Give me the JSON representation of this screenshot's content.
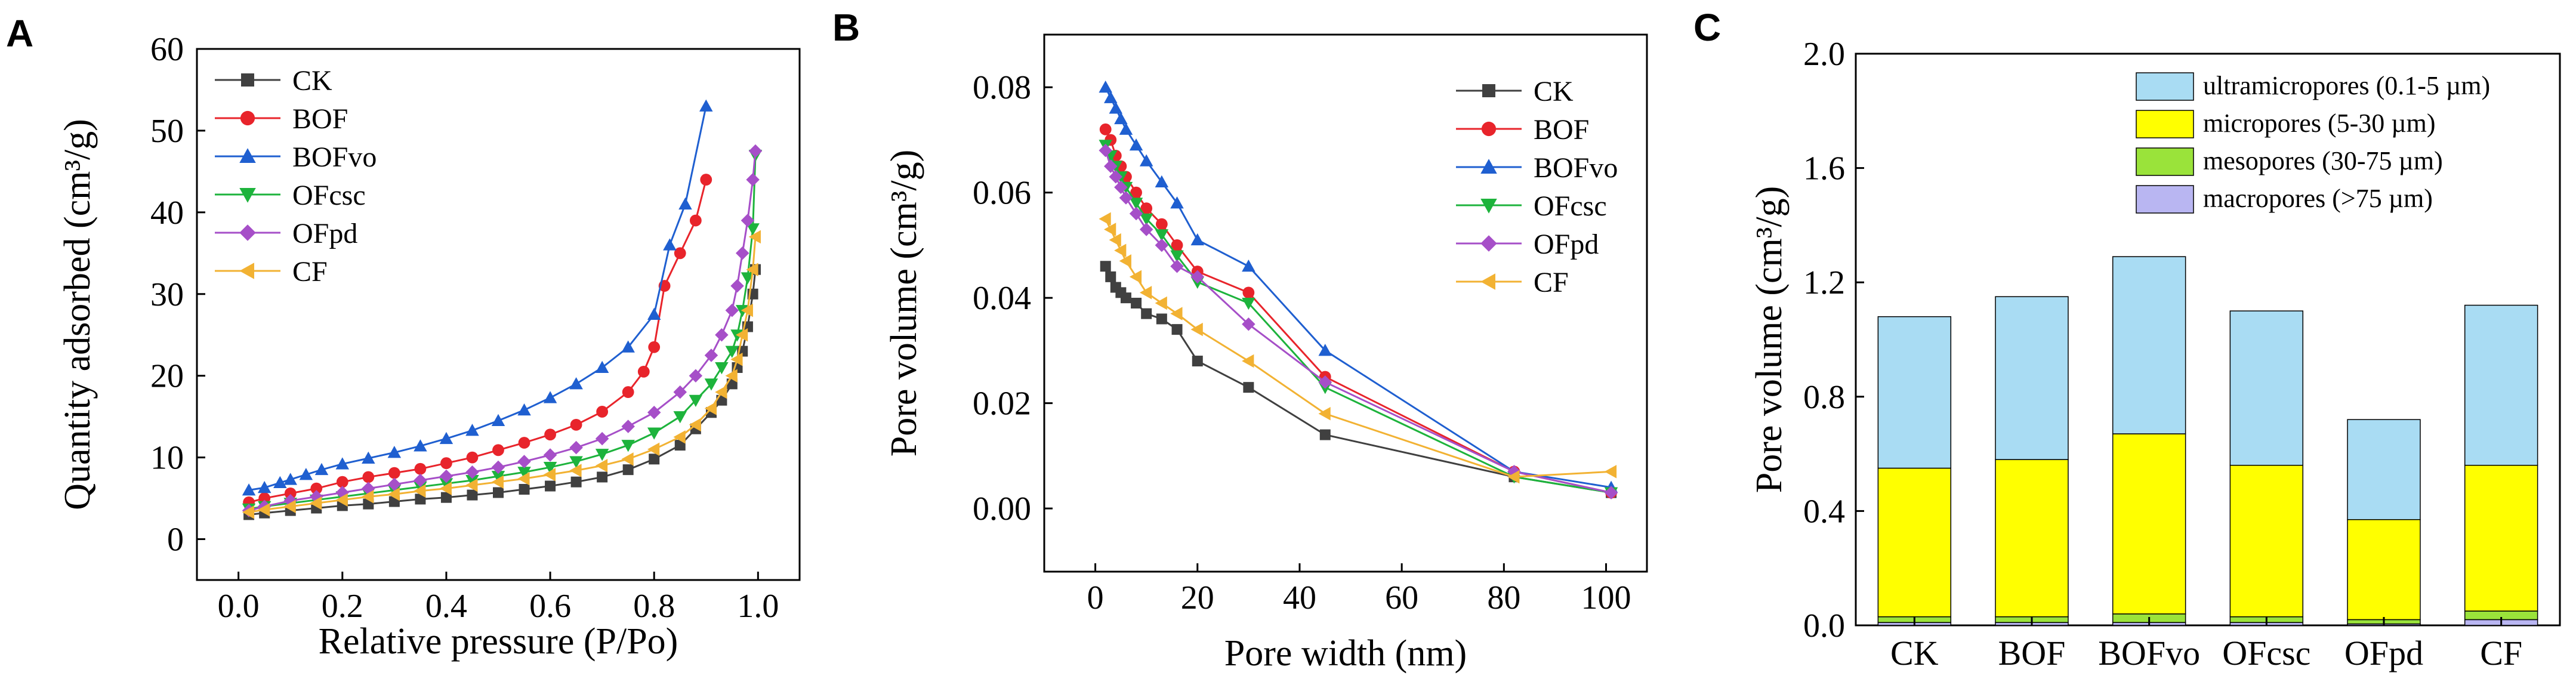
{
  "figure": {
    "panel_letters": [
      "A",
      "B",
      "C"
    ]
  },
  "chart_data": [
    {
      "type": "line",
      "panel": "A",
      "title": "",
      "xlabel": "Relative pressure (P/Po)",
      "ylabel": "Quantity adsorbed (cm³/g)",
      "xlim": [
        -0.08,
        1.08
      ],
      "ylim": [
        -5,
        60
      ],
      "xticks": [
        0.0,
        0.2,
        0.4,
        0.6,
        0.8,
        1.0
      ],
      "xtick_labels": [
        "0.0",
        "0.2",
        "0.4",
        "0.6",
        "0.8",
        "1.0"
      ],
      "yticks": [
        0,
        10,
        20,
        30,
        40,
        50,
        60
      ],
      "ytick_labels": [
        "0",
        "10",
        "20",
        "30",
        "40",
        "50",
        "60"
      ],
      "legend_position": "top-left",
      "series": [
        {
          "name": "CK",
          "color": "#404040",
          "marker": "square",
          "x": [
            0.02,
            0.05,
            0.1,
            0.15,
            0.2,
            0.25,
            0.3,
            0.35,
            0.4,
            0.45,
            0.5,
            0.55,
            0.6,
            0.65,
            0.7,
            0.75,
            0.8,
            0.85,
            0.88,
            0.91,
            0.93,
            0.95,
            0.96,
            0.97,
            0.98,
            0.99,
            0.995
          ],
          "y": [
            3.0,
            3.2,
            3.5,
            3.8,
            4.1,
            4.3,
            4.6,
            4.9,
            5.1,
            5.4,
            5.7,
            6.1,
            6.5,
            7.0,
            7.6,
            8.5,
            9.8,
            11.5,
            13.5,
            15.5,
            17.0,
            19.0,
            21.0,
            23.0,
            26.0,
            30.0,
            33.0
          ]
        },
        {
          "name": "BOF",
          "color": "#e8242b",
          "marker": "circle",
          "x": [
            0.02,
            0.05,
            0.1,
            0.15,
            0.2,
            0.25,
            0.3,
            0.35,
            0.4,
            0.45,
            0.5,
            0.55,
            0.6,
            0.65,
            0.7,
            0.75,
            0.78,
            0.8,
            0.82,
            0.85,
            0.88,
            0.9
          ],
          "y": [
            4.5,
            5.0,
            5.6,
            6.2,
            7.0,
            7.6,
            8.1,
            8.6,
            9.3,
            10.0,
            10.9,
            11.8,
            12.8,
            14.0,
            15.6,
            18.0,
            20.5,
            23.5,
            31.0,
            35.0,
            39.0,
            44.0
          ]
        },
        {
          "name": "BOFvo",
          "color": "#1f5fd0",
          "marker": "triangle-up",
          "x": [
            0.02,
            0.05,
            0.08,
            0.1,
            0.13,
            0.16,
            0.2,
            0.25,
            0.3,
            0.35,
            0.4,
            0.45,
            0.5,
            0.55,
            0.6,
            0.65,
            0.7,
            0.75,
            0.8,
            0.83,
            0.86,
            0.9
          ],
          "y": [
            6.0,
            6.3,
            6.9,
            7.3,
            7.9,
            8.5,
            9.2,
            9.9,
            10.6,
            11.4,
            12.3,
            13.3,
            14.5,
            15.8,
            17.3,
            19.0,
            21.0,
            23.5,
            27.5,
            36.0,
            41.0,
            53.0
          ]
        },
        {
          "name": "OFcsc",
          "color": "#1db33c",
          "marker": "triangle-down",
          "x": [
            0.02,
            0.05,
            0.1,
            0.15,
            0.2,
            0.25,
            0.3,
            0.35,
            0.4,
            0.45,
            0.5,
            0.55,
            0.6,
            0.65,
            0.7,
            0.75,
            0.8,
            0.85,
            0.88,
            0.91,
            0.93,
            0.95,
            0.96,
            0.97,
            0.98,
            0.99,
            0.995
          ],
          "y": [
            3.7,
            4.0,
            4.4,
            4.8,
            5.2,
            5.6,
            6.0,
            6.4,
            6.8,
            7.2,
            7.7,
            8.2,
            8.8,
            9.5,
            10.4,
            11.5,
            13.0,
            15.0,
            17.0,
            19.0,
            21.0,
            23.0,
            25.0,
            28.0,
            32.0,
            38.0,
            47.0
          ]
        },
        {
          "name": "OFpd",
          "color": "#a64fc8",
          "marker": "diamond",
          "x": [
            0.02,
            0.05,
            0.1,
            0.15,
            0.2,
            0.25,
            0.3,
            0.35,
            0.4,
            0.45,
            0.5,
            0.55,
            0.6,
            0.65,
            0.7,
            0.75,
            0.8,
            0.85,
            0.88,
            0.91,
            0.93,
            0.95,
            0.96,
            0.97,
            0.98,
            0.99,
            0.995
          ],
          "y": [
            3.5,
            4.0,
            4.7,
            5.2,
            5.7,
            6.2,
            6.7,
            7.2,
            7.7,
            8.2,
            8.8,
            9.5,
            10.3,
            11.2,
            12.3,
            13.8,
            15.5,
            18.0,
            20.0,
            22.5,
            25.0,
            28.0,
            31.0,
            35.0,
            39.0,
            44.0,
            47.5
          ]
        },
        {
          "name": "CF",
          "color": "#f2b233",
          "marker": "triangle-left",
          "x": [
            0.02,
            0.05,
            0.1,
            0.15,
            0.2,
            0.25,
            0.3,
            0.35,
            0.4,
            0.45,
            0.5,
            0.55,
            0.6,
            0.65,
            0.7,
            0.75,
            0.8,
            0.85,
            0.88,
            0.91,
            0.93,
            0.95,
            0.96,
            0.97,
            0.98,
            0.99,
            0.995
          ],
          "y": [
            3.3,
            3.6,
            4.0,
            4.4,
            4.8,
            5.2,
            5.5,
            5.9,
            6.2,
            6.6,
            7.0,
            7.4,
            7.9,
            8.4,
            9.0,
            9.8,
            11.0,
            12.5,
            14.0,
            16.0,
            18.0,
            20.0,
            22.0,
            25.0,
            28.0,
            33.0,
            37.0
          ]
        }
      ]
    },
    {
      "type": "line",
      "panel": "B",
      "title": "",
      "xlabel": "Pore width (nm)",
      "ylabel": "Pore volume (cm³/g)",
      "xlim": [
        -10,
        108
      ],
      "ylim": [
        -0.012,
        0.09
      ],
      "xticks": [
        0,
        20,
        40,
        60,
        80,
        100
      ],
      "xtick_labels": [
        "0",
        "20",
        "40",
        "60",
        "80",
        "100"
      ],
      "yticks": [
        0.0,
        0.02,
        0.04,
        0.06,
        0.08
      ],
      "ytick_labels": [
        "0.00",
        "0.02",
        "0.04",
        "0.06",
        "0.08"
      ],
      "legend_position": "top-right",
      "series": [
        {
          "name": "CK",
          "color": "#404040",
          "marker": "square",
          "x": [
            2,
            3,
            4,
            5,
            6,
            8,
            10,
            13,
            16,
            20,
            30,
            45,
            82,
            101
          ],
          "y": [
            0.046,
            0.044,
            0.042,
            0.041,
            0.04,
            0.039,
            0.037,
            0.036,
            0.034,
            0.028,
            0.023,
            0.014,
            0.006,
            0.003
          ]
        },
        {
          "name": "BOF",
          "color": "#e8242b",
          "marker": "circle",
          "x": [
            2,
            3,
            4,
            5,
            6,
            8,
            10,
            13,
            16,
            20,
            30,
            45,
            82,
            101
          ],
          "y": [
            0.072,
            0.07,
            0.067,
            0.065,
            0.063,
            0.06,
            0.057,
            0.054,
            0.05,
            0.045,
            0.041,
            0.025,
            0.007,
            0.003
          ]
        },
        {
          "name": "BOFvo",
          "color": "#1f5fd0",
          "marker": "triangle-up",
          "x": [
            2,
            3,
            4,
            5,
            6,
            8,
            10,
            13,
            16,
            20,
            30,
            45,
            82,
            101
          ],
          "y": [
            0.08,
            0.078,
            0.076,
            0.074,
            0.072,
            0.069,
            0.066,
            0.062,
            0.058,
            0.051,
            0.046,
            0.03,
            0.007,
            0.004
          ]
        },
        {
          "name": "OFcsc",
          "color": "#1db33c",
          "marker": "triangle-down",
          "x": [
            2,
            3,
            4,
            5,
            6,
            8,
            10,
            13,
            16,
            20,
            30,
            45,
            82,
            101
          ],
          "y": [
            0.069,
            0.067,
            0.065,
            0.063,
            0.061,
            0.058,
            0.055,
            0.052,
            0.048,
            0.043,
            0.039,
            0.023,
            0.006,
            0.003
          ]
        },
        {
          "name": "OFpd",
          "color": "#a64fc8",
          "marker": "diamond",
          "x": [
            2,
            3,
            4,
            5,
            6,
            8,
            10,
            13,
            16,
            20,
            30,
            45,
            82,
            101
          ],
          "y": [
            0.068,
            0.065,
            0.063,
            0.061,
            0.059,
            0.056,
            0.053,
            0.05,
            0.046,
            0.044,
            0.035,
            0.024,
            0.007,
            0.003
          ]
        },
        {
          "name": "CF",
          "color": "#f2b233",
          "marker": "triangle-left",
          "x": [
            2,
            3,
            4,
            5,
            6,
            8,
            10,
            13,
            16,
            20,
            30,
            45,
            82,
            101
          ],
          "y": [
            0.055,
            0.053,
            0.051,
            0.049,
            0.047,
            0.044,
            0.041,
            0.039,
            0.037,
            0.034,
            0.028,
            0.018,
            0.006,
            0.007
          ]
        }
      ]
    },
    {
      "type": "bar",
      "stacked": true,
      "panel": "C",
      "title": "",
      "xlabel": "",
      "ylabel": "Pore volume (cm³/g)",
      "ylim": [
        0,
        2.0
      ],
      "yticks": [
        0.0,
        0.4,
        0.8,
        1.2,
        1.6,
        2.0
      ],
      "ytick_labels": [
        "0.0",
        "0.4",
        "0.8",
        "1.2",
        "1.6",
        "2.0"
      ],
      "categories": [
        "CK",
        "BOF",
        "BOFvo",
        "OFcsc",
        "OFpd",
        "CF"
      ],
      "legend_position": "top-right",
      "series": [
        {
          "name": "macropores (>75 µm)",
          "color": "#b9b6f2",
          "values": [
            0.01,
            0.01,
            0.01,
            0.01,
            0.005,
            0.02
          ]
        },
        {
          "name": "mesopores (30-75 µm)",
          "color": "#9ae33a",
          "values": [
            0.02,
            0.02,
            0.03,
            0.02,
            0.015,
            0.03
          ]
        },
        {
          "name": "micropores (5-30 µm)",
          "color": "#ffff00",
          "values": [
            0.52,
            0.55,
            0.63,
            0.53,
            0.35,
            0.51
          ]
        },
        {
          "name": "ultramicropores (0.1-5 µm)",
          "color": "#a9dcf3",
          "values": [
            0.53,
            0.57,
            0.62,
            0.54,
            0.35,
            0.56
          ]
        }
      ],
      "legend_order": [
        "ultramicropores (0.1-5 µm)",
        "micropores (5-30 µm)",
        "mesopores (30-75 µm)",
        "macropores (>75 µm)"
      ]
    }
  ]
}
